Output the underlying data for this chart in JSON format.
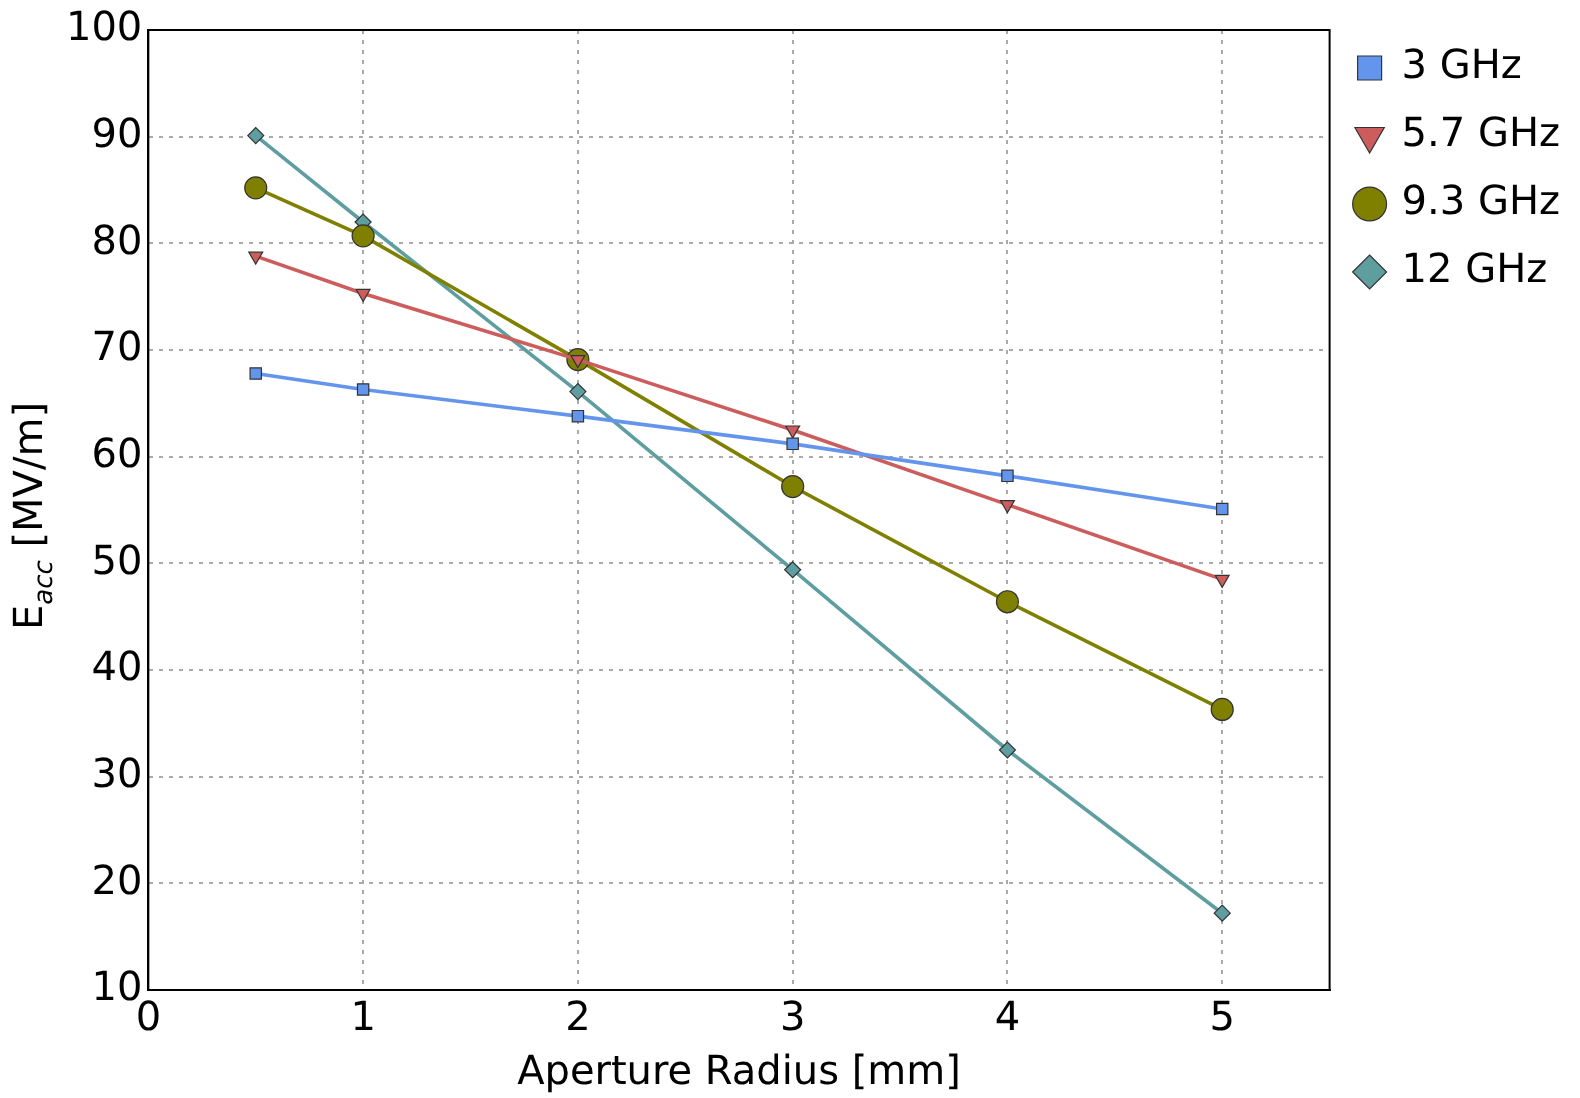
{
  "chart_data": {
    "type": "line",
    "xlabel": "Aperture Radius [mm]",
    "ylabel": "E$_{acc}$ [MV/m]",
    "x": [
      0.5,
      1,
      2,
      3,
      4,
      5
    ],
    "series": [
      {
        "name": "3 GHz",
        "color": "#6495ed",
        "marker": "square",
        "values": [
          67.8,
          66.3,
          63.8,
          61.2,
          58.2,
          55.1
        ]
      },
      {
        "name": "5.7 GHz",
        "color": "#cd5c5c",
        "marker": "triangle",
        "values": [
          78.8,
          75.3,
          69.1,
          62.5,
          55.5,
          48.5
        ]
      },
      {
        "name": "9.3 GHz",
        "color": "#808000",
        "marker": "circle",
        "values": [
          85.2,
          80.7,
          69.1,
          57.2,
          46.4,
          36.3
        ]
      },
      {
        "name": "12 GHz",
        "color": "#5f9ea0",
        "marker": "diamond",
        "values": [
          90.1,
          82.0,
          66.1,
          49.4,
          32.5,
          17.2
        ]
      }
    ],
    "xlim": [
      0,
      5.5
    ],
    "xticks": [
      0,
      1,
      2,
      3,
      4,
      5
    ],
    "ylim": [
      10,
      100
    ],
    "yticks": [
      10,
      20,
      30,
      40,
      50,
      60,
      70,
      80,
      90,
      100
    ],
    "grid": true,
    "legend": "top right",
    "line_style": "solid"
  }
}
